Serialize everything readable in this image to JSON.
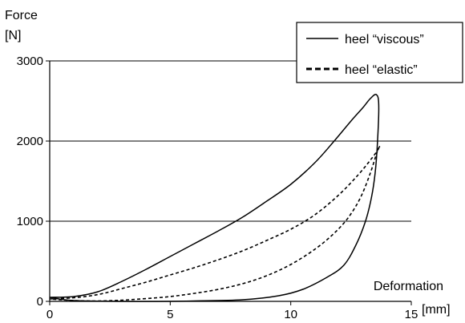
{
  "chart_data": {
    "type": "line",
    "ylabel_line1": "Force",
    "ylabel_line2": "[N]",
    "xlabel": "Deformation",
    "xunit": "[mm]",
    "xlim": [
      0,
      15
    ],
    "ylim": [
      0,
      3000
    ],
    "xticks": [
      0,
      5,
      10,
      15
    ],
    "yticks": [
      0,
      1000,
      2000,
      3000
    ],
    "grid_y": [
      1000,
      2000,
      3000
    ],
    "legend_position": "top-right",
    "series": [
      {
        "name": "heel “viscous”",
        "style": "solid",
        "x": [
          0,
          1,
          2,
          3,
          4,
          5,
          6,
          7,
          8,
          9,
          10,
          11,
          11.8,
          12.5,
          13,
          13.3,
          13.55,
          13.65,
          13.6,
          13.5,
          13.35,
          13.1,
          12.7,
          12.2,
          11.5,
          10.5,
          9.5,
          8,
          6,
          5,
          3,
          1,
          0
        ],
        "y": [
          50,
          60,
          120,
          250,
          400,
          560,
          720,
          880,
          1050,
          1250,
          1460,
          1730,
          2000,
          2250,
          2420,
          2530,
          2580,
          2450,
          2000,
          1600,
          1300,
          1000,
          700,
          450,
          300,
          150,
          70,
          20,
          5,
          0,
          0,
          10,
          50
        ]
      },
      {
        "name": "heel “elastic”",
        "style": "dashed",
        "x": [
          0,
          1,
          2,
          3,
          4,
          5,
          6,
          7,
          8,
          9,
          10,
          11,
          12,
          12.8,
          13.4,
          13.7,
          13.6,
          13.3,
          12.9,
          12.4,
          11.8,
          11,
          10,
          9,
          8,
          7,
          6,
          5,
          4,
          3,
          2,
          1,
          0
        ],
        "y": [
          30,
          45,
          85,
          160,
          240,
          330,
          420,
          520,
          630,
          760,
          900,
          1080,
          1330,
          1580,
          1800,
          1930,
          1880,
          1600,
          1300,
          1050,
          850,
          650,
          460,
          320,
          220,
          150,
          100,
          60,
          35,
          15,
          5,
          10,
          30
        ]
      }
    ]
  }
}
